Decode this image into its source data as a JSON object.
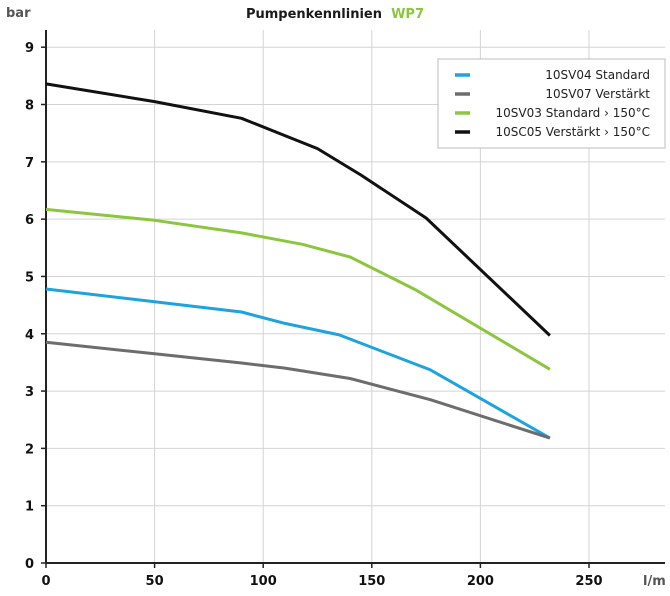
{
  "chart_data": {
    "type": "line",
    "title": "Pumpenkennlinien",
    "title_accent": "WP7",
    "ylabel": "bar",
    "xlabel": "l/m",
    "xlim": [
      0,
      285
    ],
    "ylim": [
      0,
      9.3
    ],
    "x_ticks": [
      0,
      50,
      100,
      150,
      200,
      250
    ],
    "y_ticks": [
      0,
      1,
      2,
      3,
      4,
      5,
      6,
      7,
      8,
      9
    ],
    "grid": true,
    "legend_position": "top-right",
    "colors": {
      "accent": "#8cc63f",
      "axis": "#222222",
      "grid": "#d4d4d4"
    },
    "series": [
      {
        "name": "10SV04 Standard",
        "color": "#1ea3de",
        "x": [
          0,
          50,
          90,
          110,
          135,
          177,
          232
        ],
        "y": [
          4.78,
          4.56,
          4.38,
          4.18,
          3.98,
          3.37,
          2.18
        ]
      },
      {
        "name": "10SV07 Verstärkt",
        "color": "#6d6d6d",
        "x": [
          0,
          50,
          90,
          110,
          140,
          177,
          232
        ],
        "y": [
          3.85,
          3.65,
          3.49,
          3.4,
          3.22,
          2.85,
          2.18
        ]
      },
      {
        "name": "10SV03 Standard › 150°C",
        "color": "#8cc63f",
        "x": [
          0,
          50,
          90,
          118,
          140,
          170,
          232
        ],
        "y": [
          6.17,
          5.98,
          5.76,
          5.56,
          5.34,
          4.77,
          3.38
        ]
      },
      {
        "name": "10SC05 Verstärkt › 150°C",
        "color": "#111111",
        "x": [
          0,
          50,
          90,
          125,
          145,
          175,
          232
        ],
        "y": [
          8.36,
          8.05,
          7.76,
          7.23,
          6.77,
          6.02,
          3.97
        ]
      }
    ]
  }
}
